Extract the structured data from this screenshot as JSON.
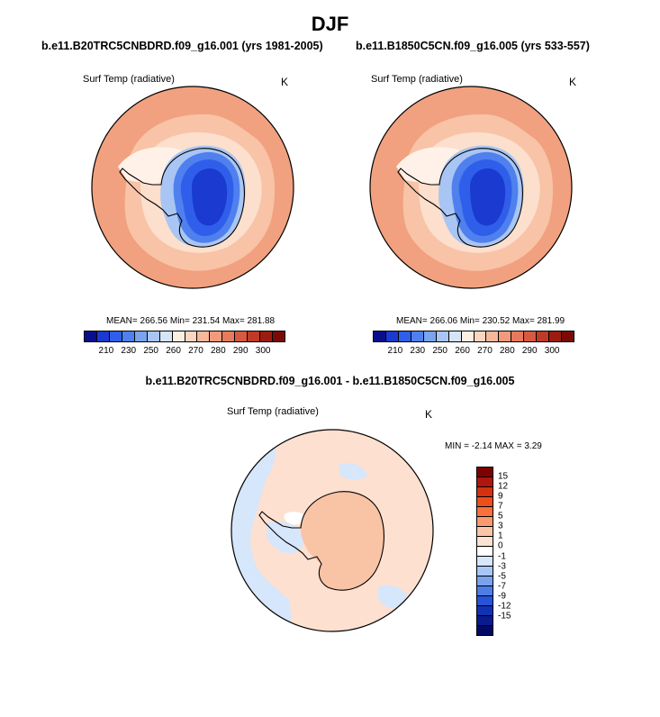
{
  "figure": {
    "season": "DJF",
    "bottom_title": "b.e11.B20TRC5CNBDRD.f09_g16.001 - b.e11.B1850C5CN.f09_g16.005"
  },
  "panels": [
    {
      "title": "b.e11.B20TRC5CNBDRD.f09_g16.001 (yrs 1981-2005)",
      "variable": "Surf Temp (radiative)",
      "units": "K",
      "stats": "MEAN= 266.56  Min= 231.54  Max= 281.88"
    },
    {
      "title": "b.e11.B1850C5CN.f09_g16.005 (yrs 533-557)",
      "variable": "Surf Temp (radiative)",
      "units": "K",
      "stats": "MEAN= 266.06  Min= 230.52  Max= 281.99"
    }
  ],
  "diff_panel": {
    "variable": "Surf Temp (radiative)",
    "units": "K",
    "stats": "MIN =  -2.14 MAX =   3.29"
  },
  "colorbar_abs": {
    "colors": [
      "#0a0e8a",
      "#1a3ad0",
      "#2f5fea",
      "#4f80ee",
      "#7aa3f0",
      "#a9c5f3",
      "#d5e5f8",
      "#fdeee2",
      "#fbd5c0",
      "#f7b79b",
      "#f29a7b",
      "#e77a5c",
      "#d75a40",
      "#c13a26",
      "#9c1c10",
      "#7a0a06"
    ],
    "labels": [
      "210",
      "230",
      "250",
      "260",
      "270",
      "280",
      "290",
      "300"
    ]
  },
  "colorbar_diff": {
    "colors": [
      "#7f0000",
      "#b0160c",
      "#d6300f",
      "#ee4e1c",
      "#f8713b",
      "#fb9a6e",
      "#fcc5a7",
      "#fde3d2",
      "#ffffff",
      "#d6e6fb",
      "#a9c7f5",
      "#7aa3ee",
      "#4f7de8",
      "#2852d7",
      "#1331b3",
      "#091b8e",
      "#030a66"
    ],
    "labels": [
      "15",
      "12",
      "9",
      "7",
      "5",
      "3",
      "1",
      "0",
      "-1",
      "-3",
      "-5",
      "-7",
      "-9",
      "-12",
      "-15"
    ]
  },
  "map_colors": {
    "ocean_warm": "#f1a17f",
    "ocean_mid": "#f8c3a6",
    "ocean_cool": "#fcdfcd",
    "sea_ice": "#fff1e7",
    "ice_edge": "#a9c5f3",
    "ice_mid": "#4f80ee",
    "ice_inner": "#2f5fea",
    "plateau": "#1a3ad0",
    "diff_base": "#fde0d0",
    "diff_warm": "#f9c3a6",
    "diff_cool": "#d6e6fb",
    "diff_white": "#ffffff"
  }
}
